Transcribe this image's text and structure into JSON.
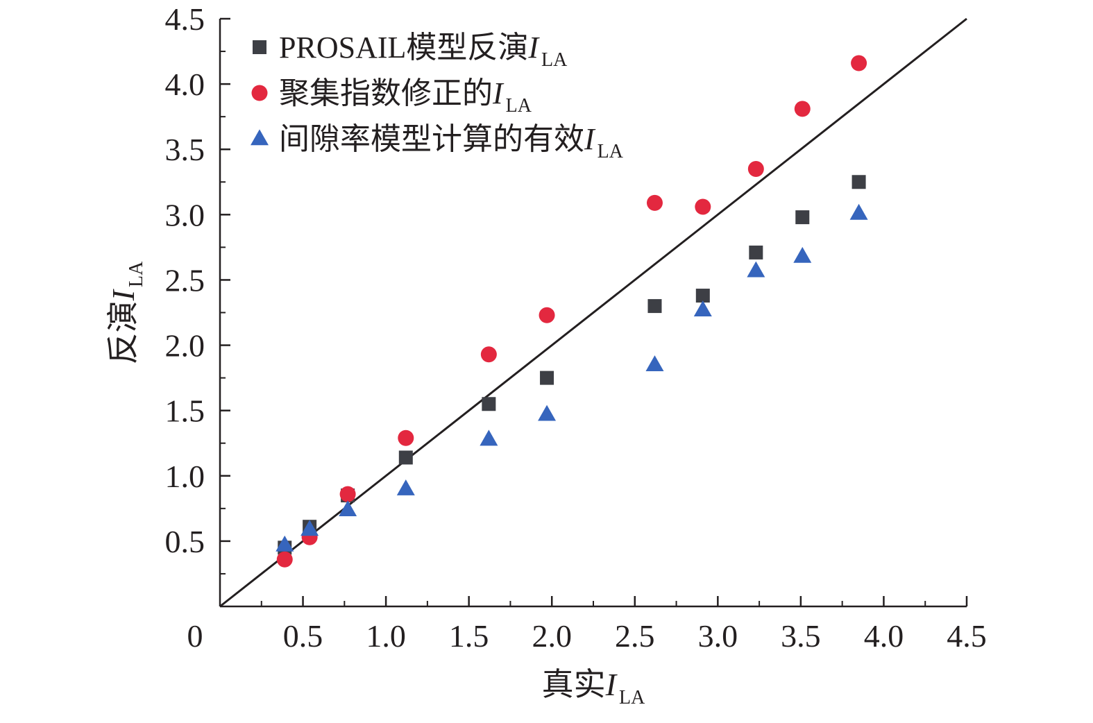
{
  "chart_data": {
    "type": "scatter",
    "title": "",
    "xlabel": {
      "main": "真实",
      "italic": "I",
      "sub": "LA"
    },
    "ylabel": {
      "main": "反演",
      "italic": "I",
      "sub": "LA"
    },
    "xlim": [
      0,
      4.5
    ],
    "ylim": [
      0,
      4.5
    ],
    "x_ticks": [
      0,
      0.5,
      1.0,
      1.5,
      2.0,
      2.5,
      3.0,
      3.5,
      4.0,
      4.5
    ],
    "y_ticks": [
      0.5,
      1.0,
      1.5,
      2.0,
      2.5,
      3.0,
      3.5,
      4.0,
      4.5
    ],
    "x_tick_labels": [
      "0",
      "0.5",
      "1.0",
      "1.5",
      "2.0",
      "2.5",
      "3.0",
      "3.5",
      "4.0",
      "4.5"
    ],
    "y_tick_labels": [
      "0.5",
      "1.0",
      "1.5",
      "2.0",
      "2.5",
      "3.0",
      "3.5",
      "4.0",
      "4.5"
    ],
    "minor_tick_step": 0.25,
    "grid": false,
    "legend_position": "top-left",
    "reference_line": {
      "type": "1:1",
      "from": [
        0,
        0
      ],
      "to": [
        4.5,
        4.5
      ]
    },
    "series": [
      {
        "name": {
          "main": "PROSAIL模型反演",
          "italic": "I",
          "sub": "LA"
        },
        "marker": "square",
        "color": "#3d3f45",
        "points": [
          [
            0.39,
            0.45
          ],
          [
            0.54,
            0.61
          ],
          [
            0.77,
            0.85
          ],
          [
            1.12,
            1.14
          ],
          [
            1.62,
            1.55
          ],
          [
            1.97,
            1.75
          ],
          [
            2.62,
            2.3
          ],
          [
            2.91,
            2.38
          ],
          [
            3.23,
            2.71
          ],
          [
            3.51,
            2.98
          ],
          [
            3.85,
            3.25
          ]
        ]
      },
      {
        "name": {
          "main": "聚集指数修正的",
          "italic": "I",
          "sub": "LA"
        },
        "marker": "circle",
        "color": "#e3283f",
        "points": [
          [
            0.39,
            0.36
          ],
          [
            0.54,
            0.53
          ],
          [
            0.77,
            0.86
          ],
          [
            1.12,
            1.29
          ],
          [
            1.62,
            1.93
          ],
          [
            1.97,
            2.23
          ],
          [
            2.62,
            3.09
          ],
          [
            2.91,
            3.06
          ],
          [
            3.23,
            3.35
          ],
          [
            3.51,
            3.81
          ],
          [
            3.85,
            4.16
          ]
        ]
      },
      {
        "name": {
          "main": "间隙率模型计算的有效",
          "italic": "I",
          "sub": "LA"
        },
        "marker": "triangle",
        "color": "#3665bd",
        "points": [
          [
            0.39,
            0.47
          ],
          [
            0.54,
            0.59
          ],
          [
            0.77,
            0.74
          ],
          [
            1.12,
            0.9
          ],
          [
            1.62,
            1.28
          ],
          [
            1.97,
            1.47
          ],
          [
            2.62,
            1.85
          ],
          [
            2.91,
            2.27
          ],
          [
            3.23,
            2.57
          ],
          [
            3.51,
            2.68
          ],
          [
            3.85,
            3.01
          ]
        ]
      }
    ]
  }
}
